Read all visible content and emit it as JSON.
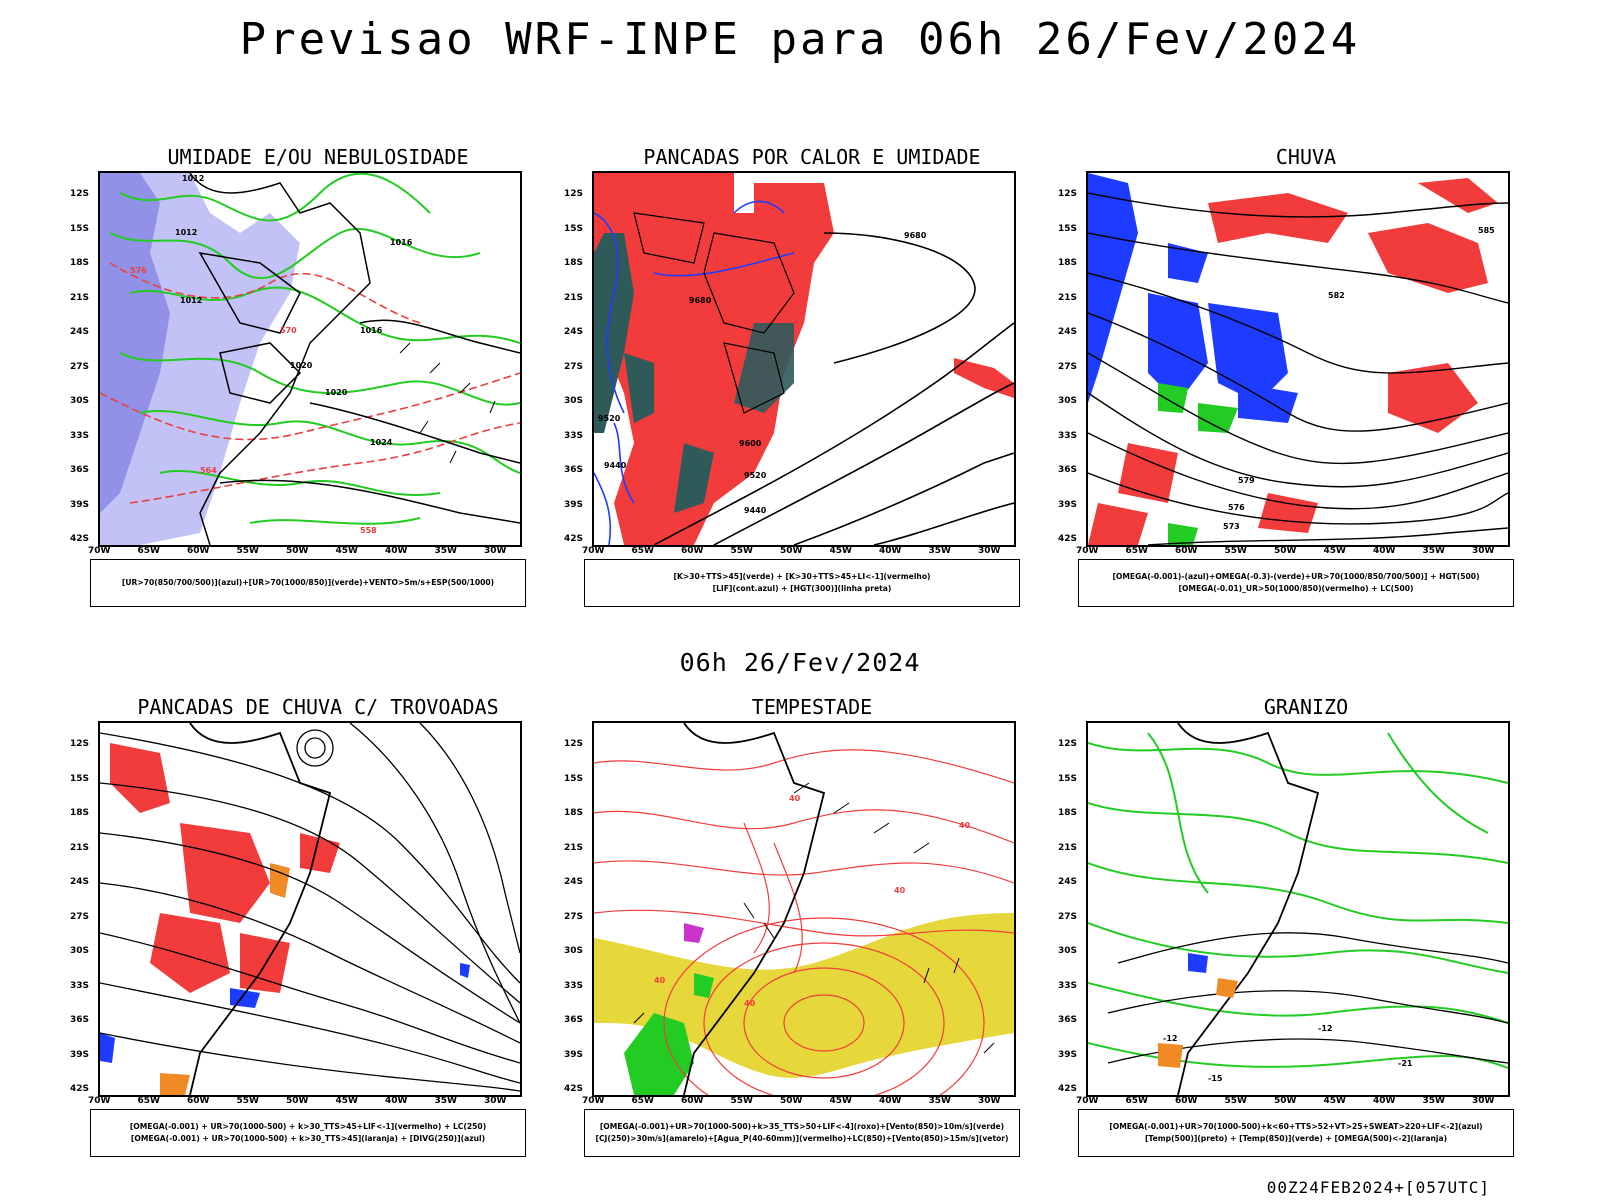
{
  "header": {
    "title": "Previsao WRF-INPE  para 06h 26/Fev/2024"
  },
  "mid_title": "06h 26/Fev/2024",
  "footer": "00Z24FEB2024+[057UTC]",
  "axes": {
    "lat_labels": [
      "12S",
      "15S",
      "18S",
      "21S",
      "24S",
      "27S",
      "30S",
      "33S",
      "36S",
      "39S",
      "42S"
    ],
    "lon_labels": [
      "70W",
      "65W",
      "60W",
      "55W",
      "50W",
      "45W",
      "40W",
      "35W",
      "30W"
    ]
  },
  "panels": [
    {
      "id": "umidade",
      "title": "UMIDADE E/OU NEBULOSIDADE",
      "legend": [
        "[UR>70(850/700/500)](azul)+[UR>70(1000/850)](verde)+VENTO>5m/s+ESP(500/1000)"
      ],
      "contour_labels": [
        "1012",
        "1012",
        "1012",
        "1016",
        "1016",
        "1020",
        "1020",
        "1024",
        "576",
        "570",
        "564",
        "558"
      ]
    },
    {
      "id": "pancadas-calor",
      "title": "PANCADAS POR CALOR E UMIDADE",
      "legend": [
        "[K>30+TTS>45](verde) + [K>30+TTS>45+LI<-1](vermelho)",
        "[LIF](cont.azul) + [HGT(300)](linha preta)"
      ],
      "contour_labels": [
        "9680",
        "9680",
        "9600",
        "9520",
        "9440",
        "9440",
        "9520"
      ]
    },
    {
      "id": "chuva",
      "title": "CHUVA",
      "legend": [
        "[OMEGA(-0.001)-(azul)+OMEGA(-0.3)-(verde)+UR>70(1000/850/700/500)] + HGT(500)",
        "[OMEGA(-0.01)_UR>50(1000/850)(vermelho) + LC(500)"
      ],
      "contour_labels": [
        "585",
        "582",
        "579",
        "576",
        "573"
      ]
    },
    {
      "id": "trovoadas",
      "title": "PANCADAS DE CHUVA C/ TROVOADAS",
      "legend": [
        "[OMEGA(-0.001) + UR>70(1000-500) + k>30_TTS>45+LIF<-1](vermelho) + LC(250)",
        "[OMEGA(-0.001) + UR>70(1000-500) + k>30_TTS>45](laranja) + [DIVG(250)](azul)"
      ],
      "contour_labels": []
    },
    {
      "id": "tempestade",
      "title": "TEMPESTADE",
      "legend": [
        "[OMEGA(-0.001)+UR>70(1000-500)+k>35_TTS>50+LIF<-4](roxo)+[Vento(850)>10m/s](verde)",
        "[CJ(250)>30m/s](amarelo)+[Agua_P(40-60mm)](vermelho)+LC(850)+[Vento(850)>15m/s](vetor)"
      ],
      "contour_labels": [
        "40",
        "40",
        "40",
        "40",
        "40"
      ]
    },
    {
      "id": "granizo",
      "title": "GRANIZO",
      "legend": [
        "[OMEGA(-0.001)+UR>70(1000-500)+k<60+TTS>52+VT>25+SWEAT>220+LIF<-2](azul)",
        "[Temp(500)](preto) + [Temp(850)](verde) + [OMEGA(500)<-2](laranja)"
      ],
      "contour_labels": [
        "-12",
        "-12",
        "-21",
        "-15"
      ]
    }
  ],
  "colors": {
    "humidity_blue": "#9a9af0",
    "humidity_green": "#22cc22",
    "rain_red": "#f23c3c",
    "rain_blue": "#1e3cff",
    "orange": "#f08a24",
    "jet_yellow": "#e6d83a",
    "teal": "#2f5a5a"
  }
}
